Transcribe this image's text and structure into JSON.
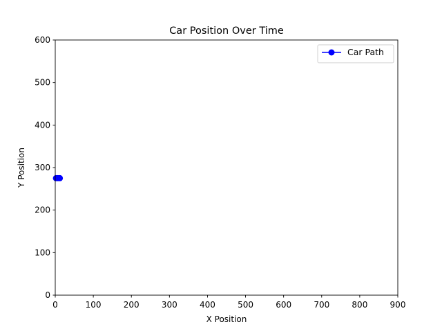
{
  "chart_data": {
    "type": "line",
    "title": "Car Position Over Time",
    "xlabel": "X Position",
    "ylabel": "Y Position",
    "xlim": [
      0,
      900
    ],
    "ylim": [
      0,
      600
    ],
    "xticks": [
      0,
      100,
      200,
      300,
      400,
      500,
      600,
      700,
      800,
      900
    ],
    "yticks": [
      0,
      100,
      200,
      300,
      400,
      500,
      600
    ],
    "grid": false,
    "legend_position": "top-right",
    "series": [
      {
        "name": "Car Path",
        "color": "#0000ff",
        "marker": "circle",
        "x": [
          2,
          7,
          12
        ],
        "y": [
          275,
          275,
          275
        ]
      }
    ]
  },
  "labels": {
    "title": "Car Position Over Time",
    "xlabel": "X Position",
    "ylabel": "Y Position",
    "legend": "Car Path"
  }
}
